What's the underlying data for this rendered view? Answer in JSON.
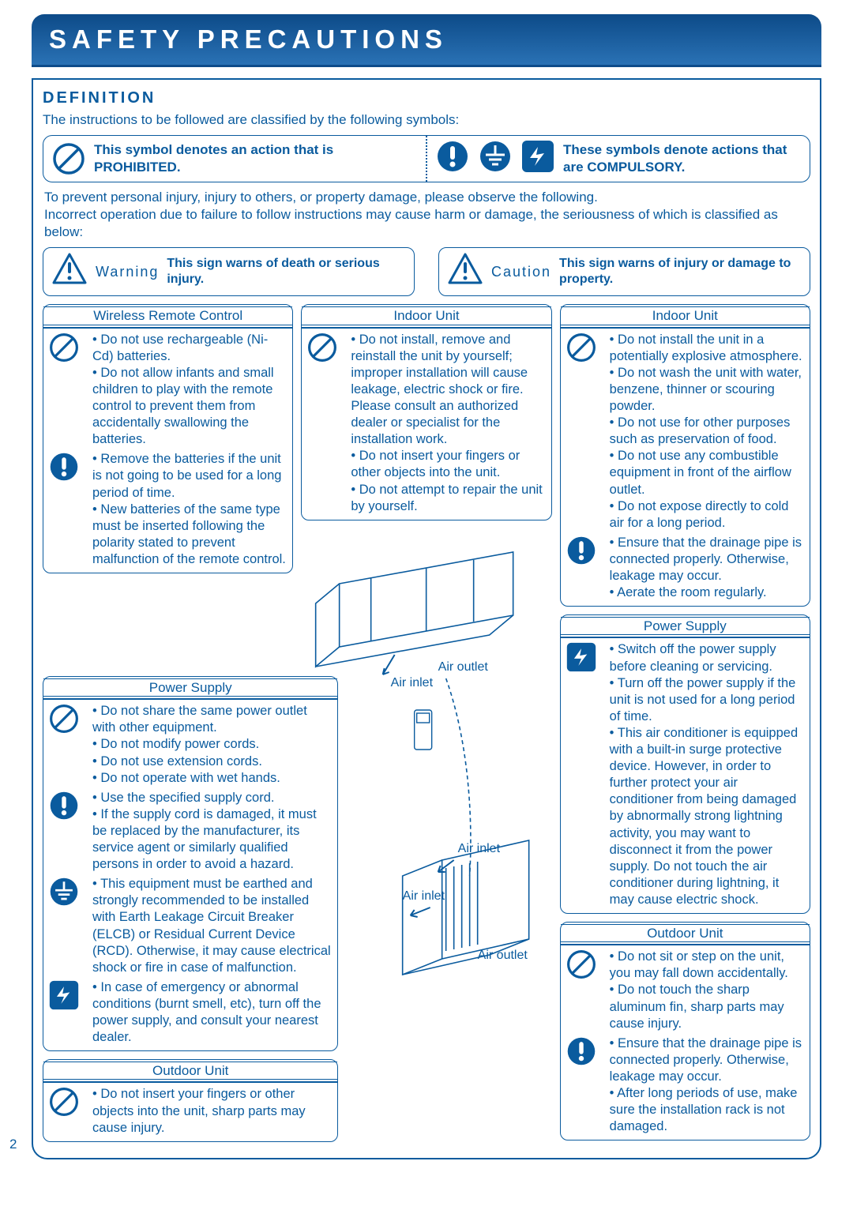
{
  "colors": {
    "primary": "#0a5b9e",
    "banner_dark": "#0e4c8a",
    "banner_light": "#2a72b5",
    "white": "#ffffff"
  },
  "header": {
    "title": "SAFETY PRECAUTIONS"
  },
  "definition": {
    "heading": "DEFINITION",
    "subtext": "The instructions to be followed are classified by the following symbols:",
    "prohibited_text": "This symbol denotes an action that is PROHIBITED.",
    "compulsory_text": "These symbols denote actions that are COMPULSORY."
  },
  "intro": {
    "line1": "To prevent personal injury, injury to others, or property damage, please observe the following.",
    "line2": "Incorrect operation due to failure to follow instructions may cause harm or damage, the seriousness of which is classified as below:"
  },
  "warning": {
    "label": "Warning",
    "desc": "This sign warns of death or serious injury."
  },
  "caution": {
    "label": "Caution",
    "desc": "This sign warns of injury or damage to property."
  },
  "diagram": {
    "air_outlet": "Air outlet",
    "air_inlet": "Air inlet"
  },
  "panels": {
    "remote": {
      "title": "Wireless Remote Control",
      "prohibited": [
        "Do not use rechargeable (Ni-Cd) batteries.",
        "Do not allow infants and small children to play with the remote control to prevent them from accidentally swallowing the batteries."
      ],
      "compulsory": [
        "Remove the batteries if the unit is not going to be used for a long period of time.",
        "New batteries of the same type must be inserted following the polarity stated to prevent malfunction of the remote control."
      ]
    },
    "indoor_warn": {
      "title": "Indoor Unit",
      "prohibited": [
        "Do not install, remove and reinstall the unit by yourself; improper installation will cause leakage, electric shock or fire. Please consult an authorized dealer or specialist for the installation work.",
        "Do not insert your fingers or other objects into the unit.",
        "Do not attempt to repair the unit by yourself."
      ]
    },
    "indoor_caution": {
      "title": "Indoor Unit",
      "prohibited": [
        "Do not install the unit in a potentially explosive atmosphere.",
        "Do not wash the unit with water, benzene, thinner or scouring powder.",
        "Do not use for other purposes such as preservation of food.",
        "Do not use any combustible equipment in front of the airflow outlet.",
        "Do not expose directly to cold air for a long period."
      ],
      "compulsory": [
        "Ensure that the drainage pipe is connected properly. Otherwise, leakage may occur.",
        "Aerate the room regularly."
      ]
    },
    "power_warn": {
      "title": "Power Supply",
      "prohibited": [
        "Do not share the same power outlet with other equipment.",
        "Do not modify power cords.",
        "Do not use extension cords.",
        "Do not operate with wet hands."
      ],
      "compulsory": [
        "Use the specified supply cord.",
        "If the supply cord is damaged, it must be replaced by the manufacturer, its service agent or similarly qualified persons in order to avoid a hazard."
      ],
      "ground": [
        "This equipment must be earthed and strongly recommended to be installed with Earth Leakage Circuit Breaker (ELCB) or Residual Current Device (RCD). Otherwise, it may cause electrical shock or fire in case of malfunction."
      ],
      "plug": [
        "In case of emergency or abnormal conditions (burnt smell, etc), turn off the power supply, and consult your nearest dealer."
      ]
    },
    "power_caution": {
      "title": "Power Supply",
      "plug": [
        "Switch off the power supply before cleaning or servicing.",
        "Turn off the power supply if the unit is not used for a long period of time.",
        "This air conditioner is equipped with a built-in surge protective device. However, in order to further protect your air conditioner from being damaged by abnormally strong lightning activity, you may want to disconnect it from the power supply. Do not touch the air conditioner during lightning, it may cause electric shock."
      ]
    },
    "outdoor_warn": {
      "title": "Outdoor Unit",
      "prohibited": [
        "Do not insert your fingers or other objects into the unit, sharp parts may cause injury."
      ]
    },
    "outdoor_caution": {
      "title": "Outdoor Unit",
      "prohibited": [
        "Do not sit or step on the unit, you may fall down accidentally.",
        "Do not touch the sharp aluminum fin, sharp parts may cause injury."
      ],
      "compulsory": [
        "Ensure that the drainage pipe is connected properly. Otherwise, leakage may occur.",
        "After long periods of use, make sure the installation rack is not damaged."
      ]
    }
  },
  "page_number": "2"
}
